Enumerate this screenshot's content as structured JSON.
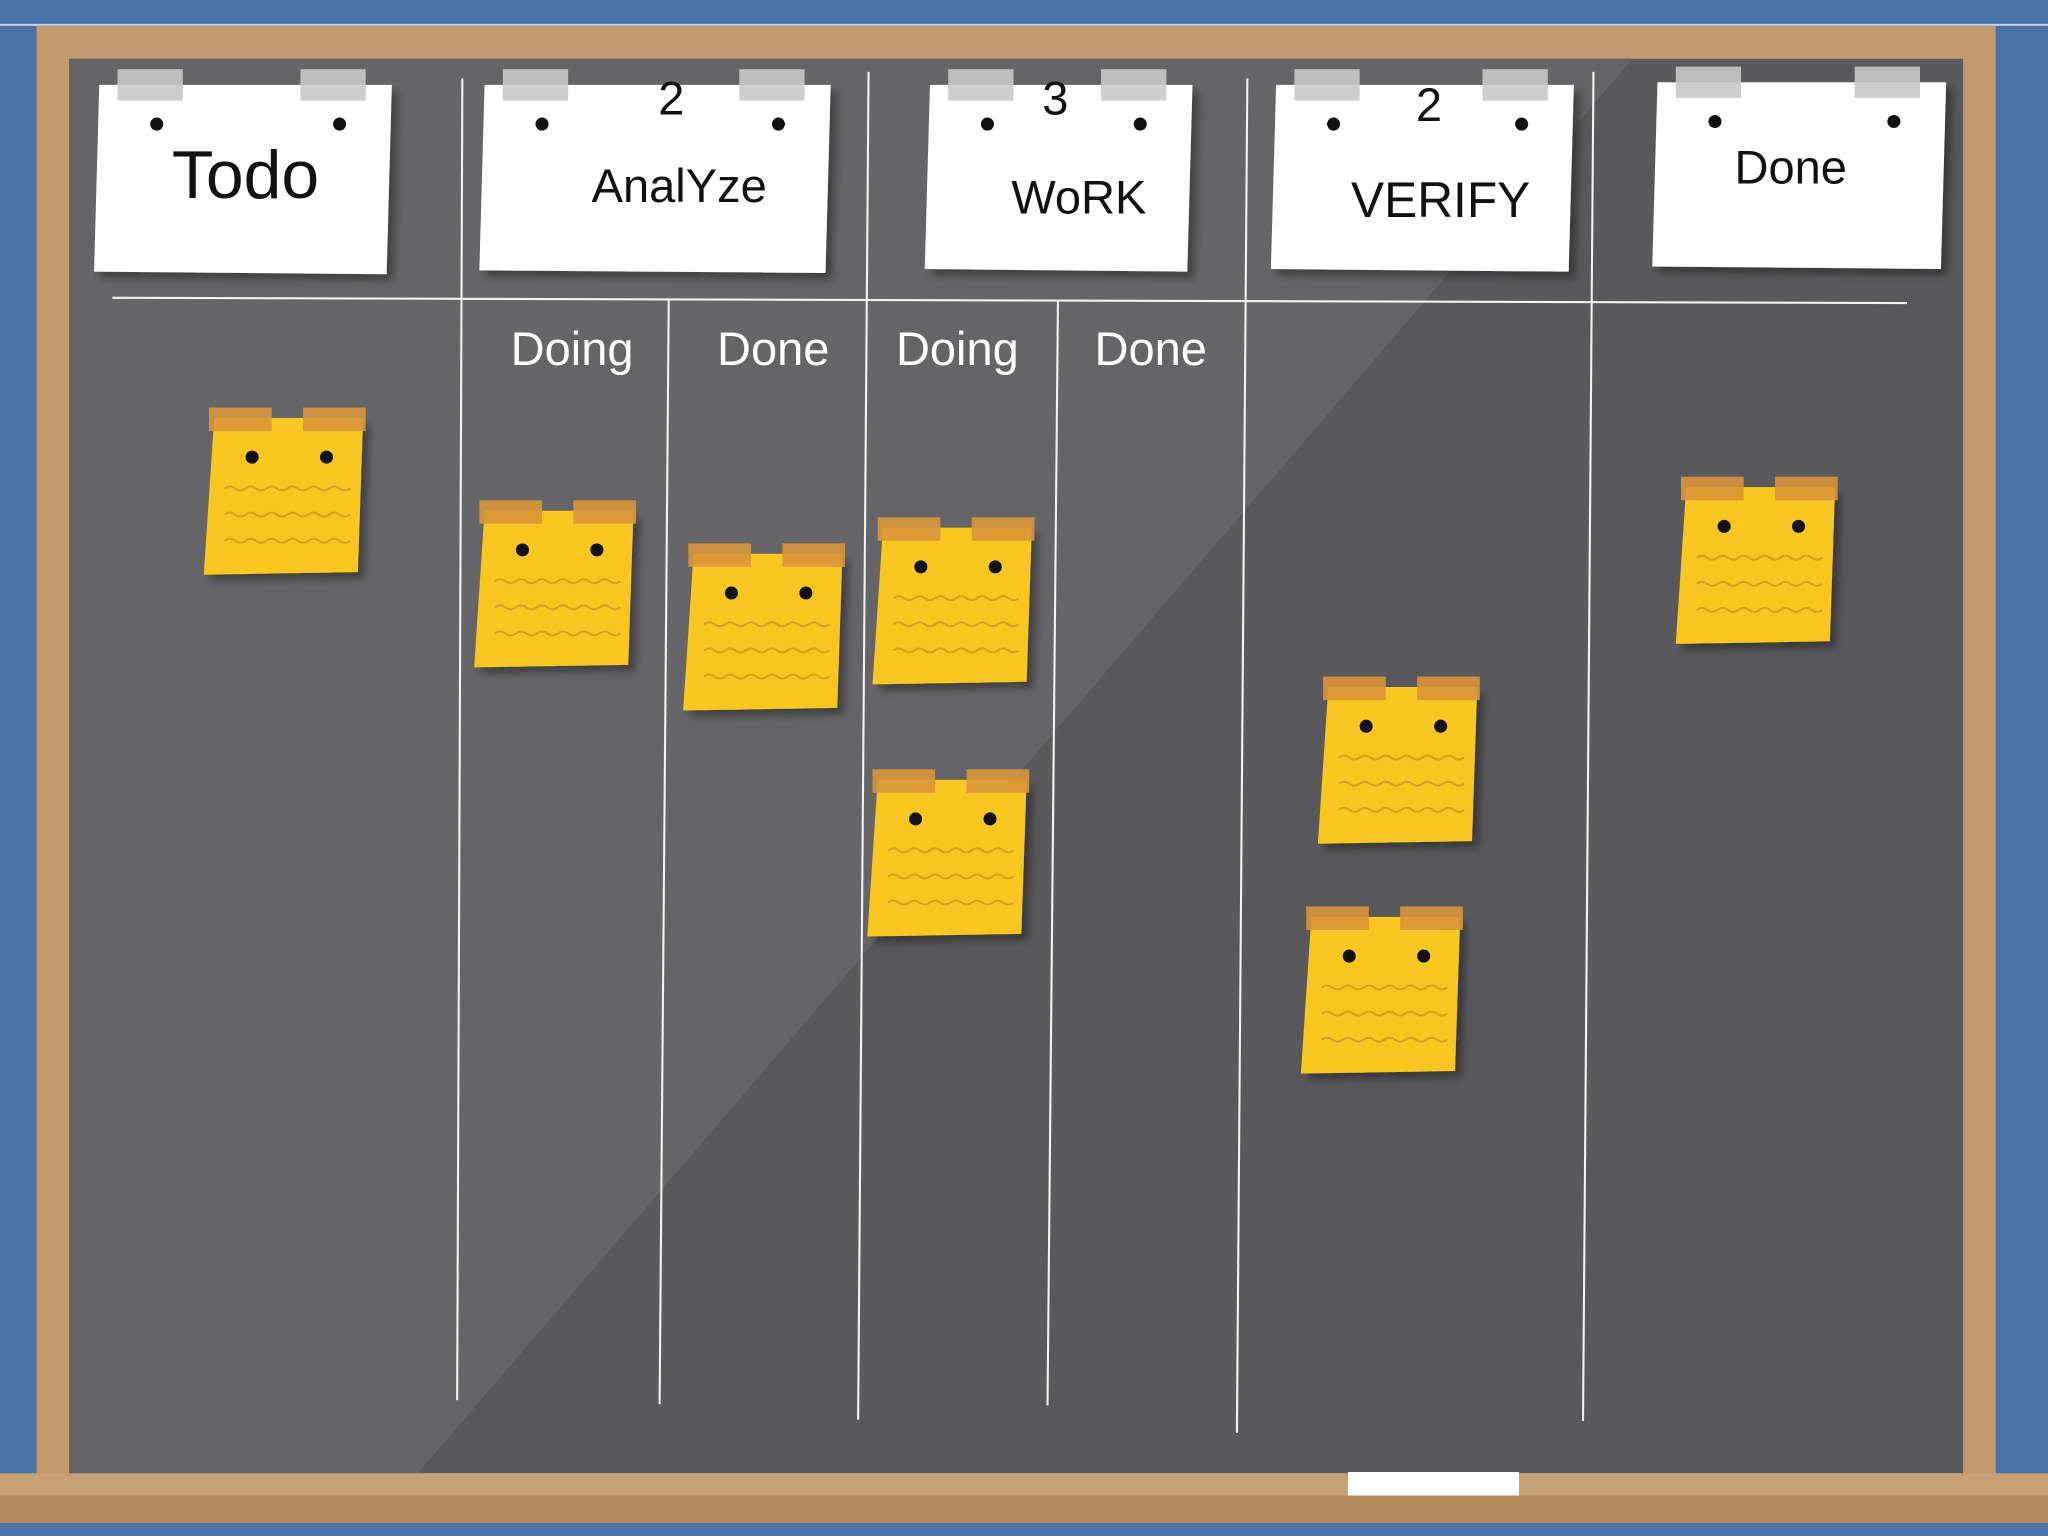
{
  "columns": [
    {
      "title": "Todo"
    },
    {
      "title": "AnalYze",
      "limit": 2,
      "subcolumns": [
        "Doing",
        "Done"
      ]
    },
    {
      "title": "WoRK",
      "limit": 3,
      "subcolumns": [
        "Doing",
        "Done"
      ]
    },
    {
      "title": "VERIFY",
      "limit": 2
    },
    {
      "title": "Done"
    }
  ]
}
